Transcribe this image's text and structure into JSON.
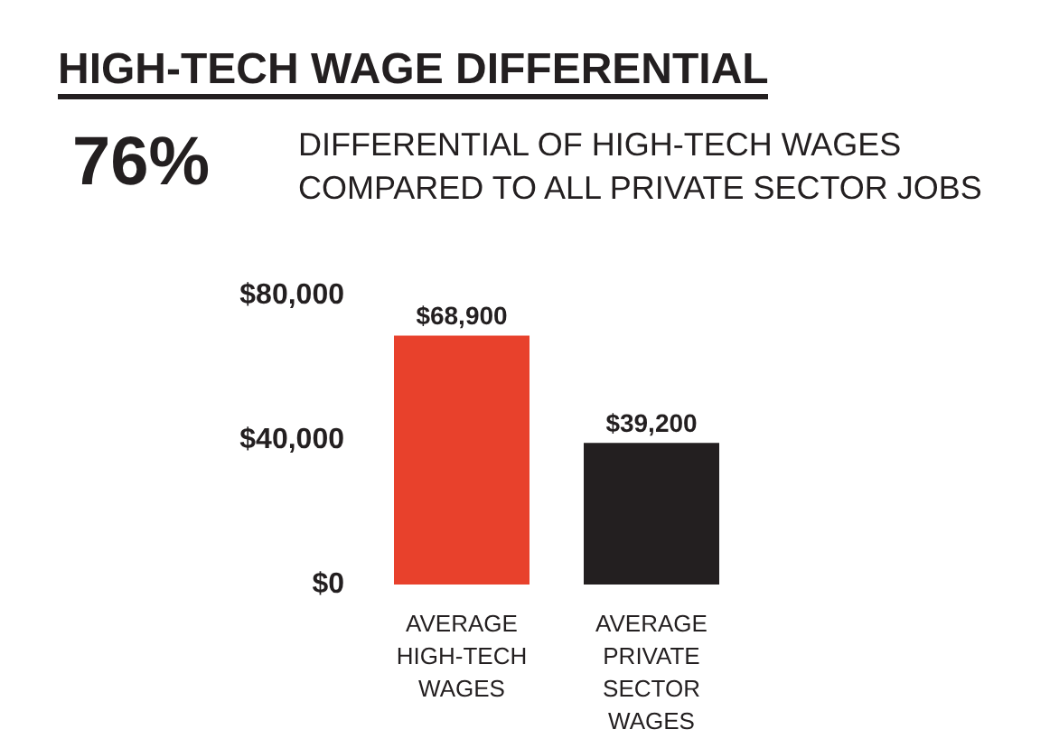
{
  "chart_data": {
    "type": "bar",
    "title": "HIGH-TECH WAGE DIFFERENTIAL",
    "subtitle": "DIFFERENTIAL OF HIGH-TECH WAGES\nCOMPARED TO ALL PRIVATE SECTOR JOBS",
    "annotations": [
      "76%"
    ],
    "categories": [
      "AVERAGE\nHIGH-TECH\nWAGES",
      "AVERAGE\nPRIVATE\nSECTOR\nWAGES"
    ],
    "values": [
      68900,
      39200
    ],
    "colors": [
      "#e8412c",
      "#231f20"
    ],
    "value_labels": [
      "$68,900",
      "$39,200"
    ],
    "ylim": [
      0,
      80000
    ],
    "yticks": [
      {
        "value": 0,
        "label": "$0"
      },
      {
        "value": 40000,
        "label": "$40,000"
      },
      {
        "value": 80000,
        "label": "$80,000"
      }
    ],
    "grid": false
  }
}
